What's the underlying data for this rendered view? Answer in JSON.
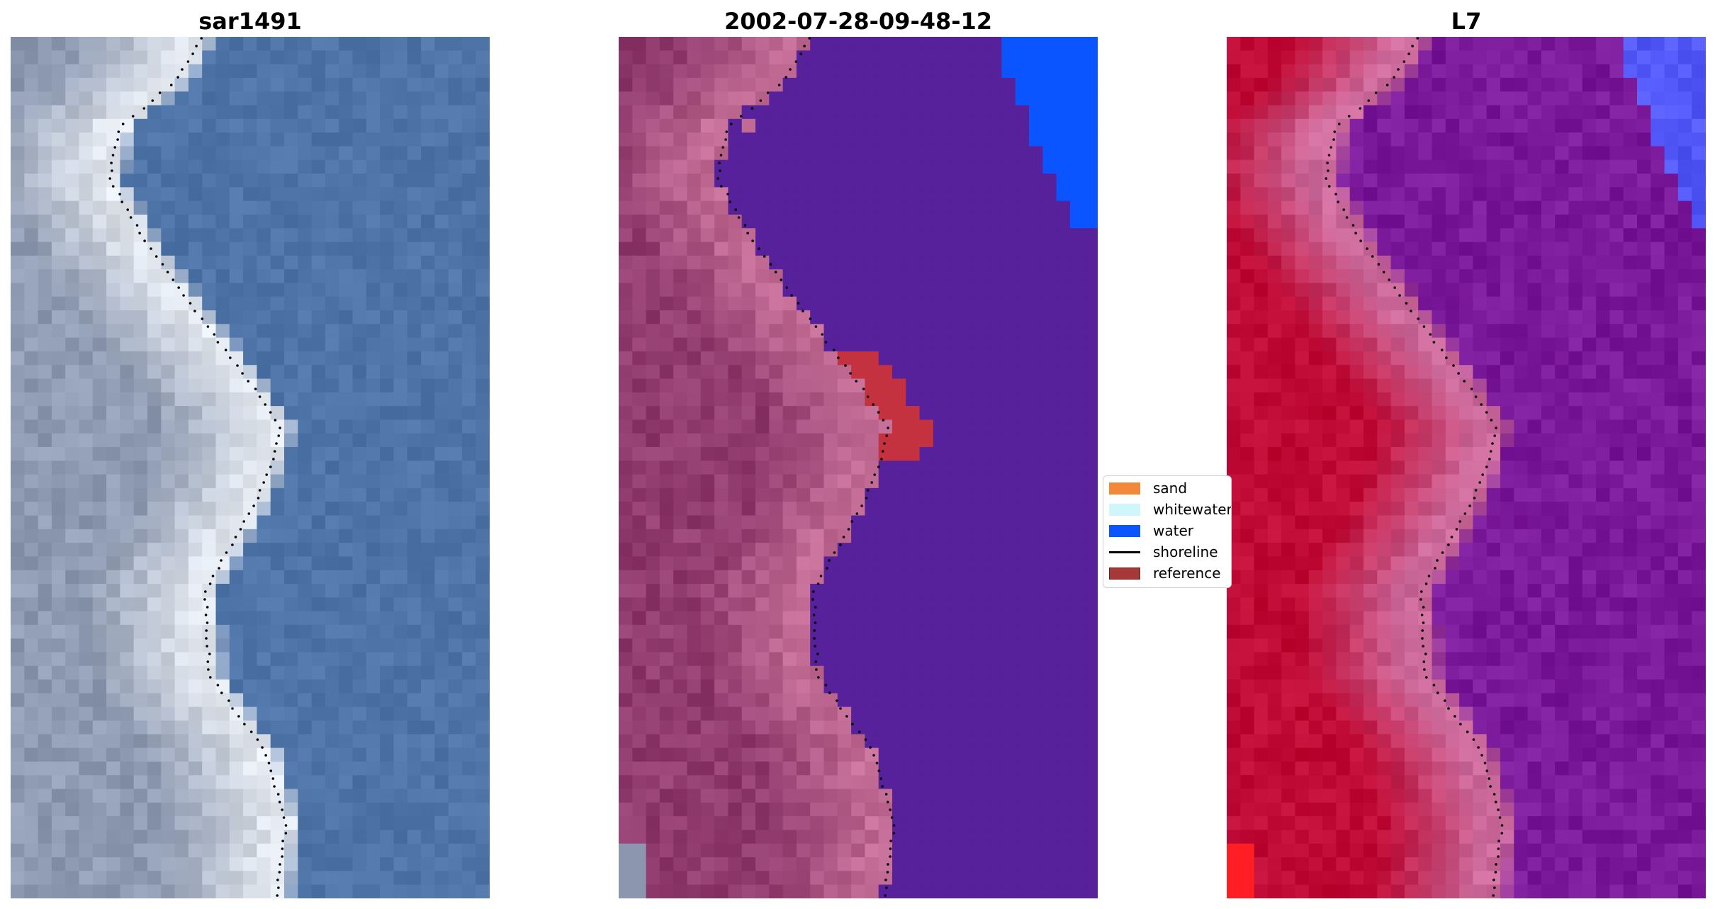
{
  "titles": [
    "sar1491",
    "2002-07-28-09-48-12",
    "L7"
  ],
  "legend": [
    {
      "label": "sand",
      "color": "#f4883a",
      "kind": "patch",
      "icon": "sand-swatch-icon"
    },
    {
      "label": "whitewater",
      "color": "#cff7fb",
      "kind": "patch",
      "icon": "whitewater-swatch-icon"
    },
    {
      "label": "water",
      "color": "#0a55ff",
      "kind": "patch",
      "icon": "water-swatch-icon"
    },
    {
      "label": "shoreline",
      "color": "#000000",
      "kind": "line",
      "icon": "shoreline-line-icon"
    },
    {
      "label": "reference",
      "color": "#a63838",
      "kind": "patch",
      "icon": "reference-swatch-icon"
    }
  ],
  "palette": {
    "rgb_land": "#8f9bb2",
    "rgb_beach": "#dce2ea",
    "rgb_sea": "#4f74a8",
    "class_land": "#913c6e",
    "class_beach": "#c06a94",
    "class_sea": "#56219a",
    "class_water": "#0a55ff",
    "class_reference": "#c4323f",
    "fc_land": "#bf0b35",
    "fc_beach": "#cc6a9b",
    "fc_sea": "#7a1a9a",
    "fc_water": "#5258f8"
  }
}
